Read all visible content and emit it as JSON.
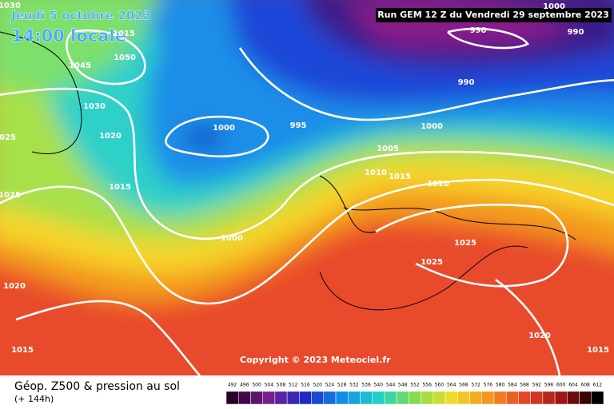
{
  "header": {
    "date": "Jeudi 5 octobre 2023",
    "time": "14:00 locale",
    "run": "Run GEM 12 Z du Vendredi 29 septembre 2023"
  },
  "isobars": [
    "1030",
    "1050",
    "1045",
    "1015",
    "1030",
    "1020",
    "1025",
    "1015",
    "1025",
    "1020",
    "1015",
    "1000",
    "995",
    "1000",
    "1005",
    "1010",
    "1015",
    "1020",
    "1000",
    "990",
    "990",
    "990",
    "1000",
    "1025",
    "1025",
    "1020",
    "1015"
  ],
  "copyright": "Copyright © 2023 Meteociel.fr",
  "footer": {
    "title": "Géop. Z500 & pression au sol",
    "lead": "(+ 144h)"
  },
  "colorbar": {
    "labels": [
      492,
      496,
      500,
      504,
      508,
      512,
      516,
      520,
      524,
      528,
      532,
      536,
      540,
      544,
      548,
      552,
      556,
      560,
      564,
      568,
      572,
      576,
      580,
      584,
      588,
      592,
      596,
      600,
      604,
      608,
      612
    ]
  }
}
